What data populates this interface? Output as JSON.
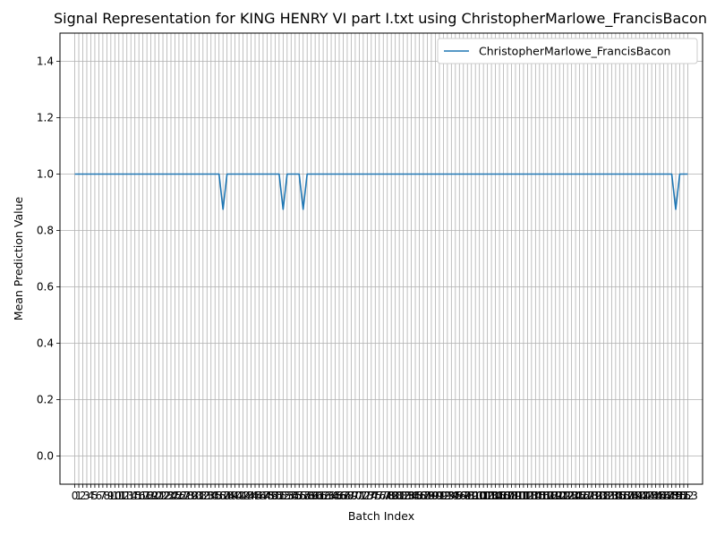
{
  "chart_data": {
    "type": "line",
    "title": "Signal Representation for KING HENRY VI part I.txt using ChristopherMarlowe_FrancisBacon",
    "xlabel": "Batch Index",
    "ylabel": "Mean Prediction Value",
    "xlim": [
      -3.7,
      156.7
    ],
    "ylim": [
      -0.1,
      1.5
    ],
    "yticks": [
      0.0,
      0.2,
      0.4,
      0.6,
      0.8,
      1.0,
      1.2,
      1.4
    ],
    "ytick_labels": [
      "0.0",
      "0.2",
      "0.4",
      "0.6",
      "0.8",
      "1.0",
      "1.2",
      "1.4"
    ],
    "x_tick_count": 154,
    "x_tick_first_label": "0",
    "x_tick_last_label": "153",
    "grid": true,
    "legend_position": "top-right",
    "series": [
      {
        "name": "ChristopherMarlowe_FrancisBacon",
        "color": "#1f77b4",
        "dips": [
          {
            "x": 37,
            "y": 0.875
          },
          {
            "x": 52,
            "y": 0.875
          },
          {
            "x": 57,
            "y": 0.875
          },
          {
            "x": 150,
            "y": 0.875
          }
        ],
        "baseline": 1.0,
        "x_start": 0,
        "x_end": 153
      }
    ]
  }
}
